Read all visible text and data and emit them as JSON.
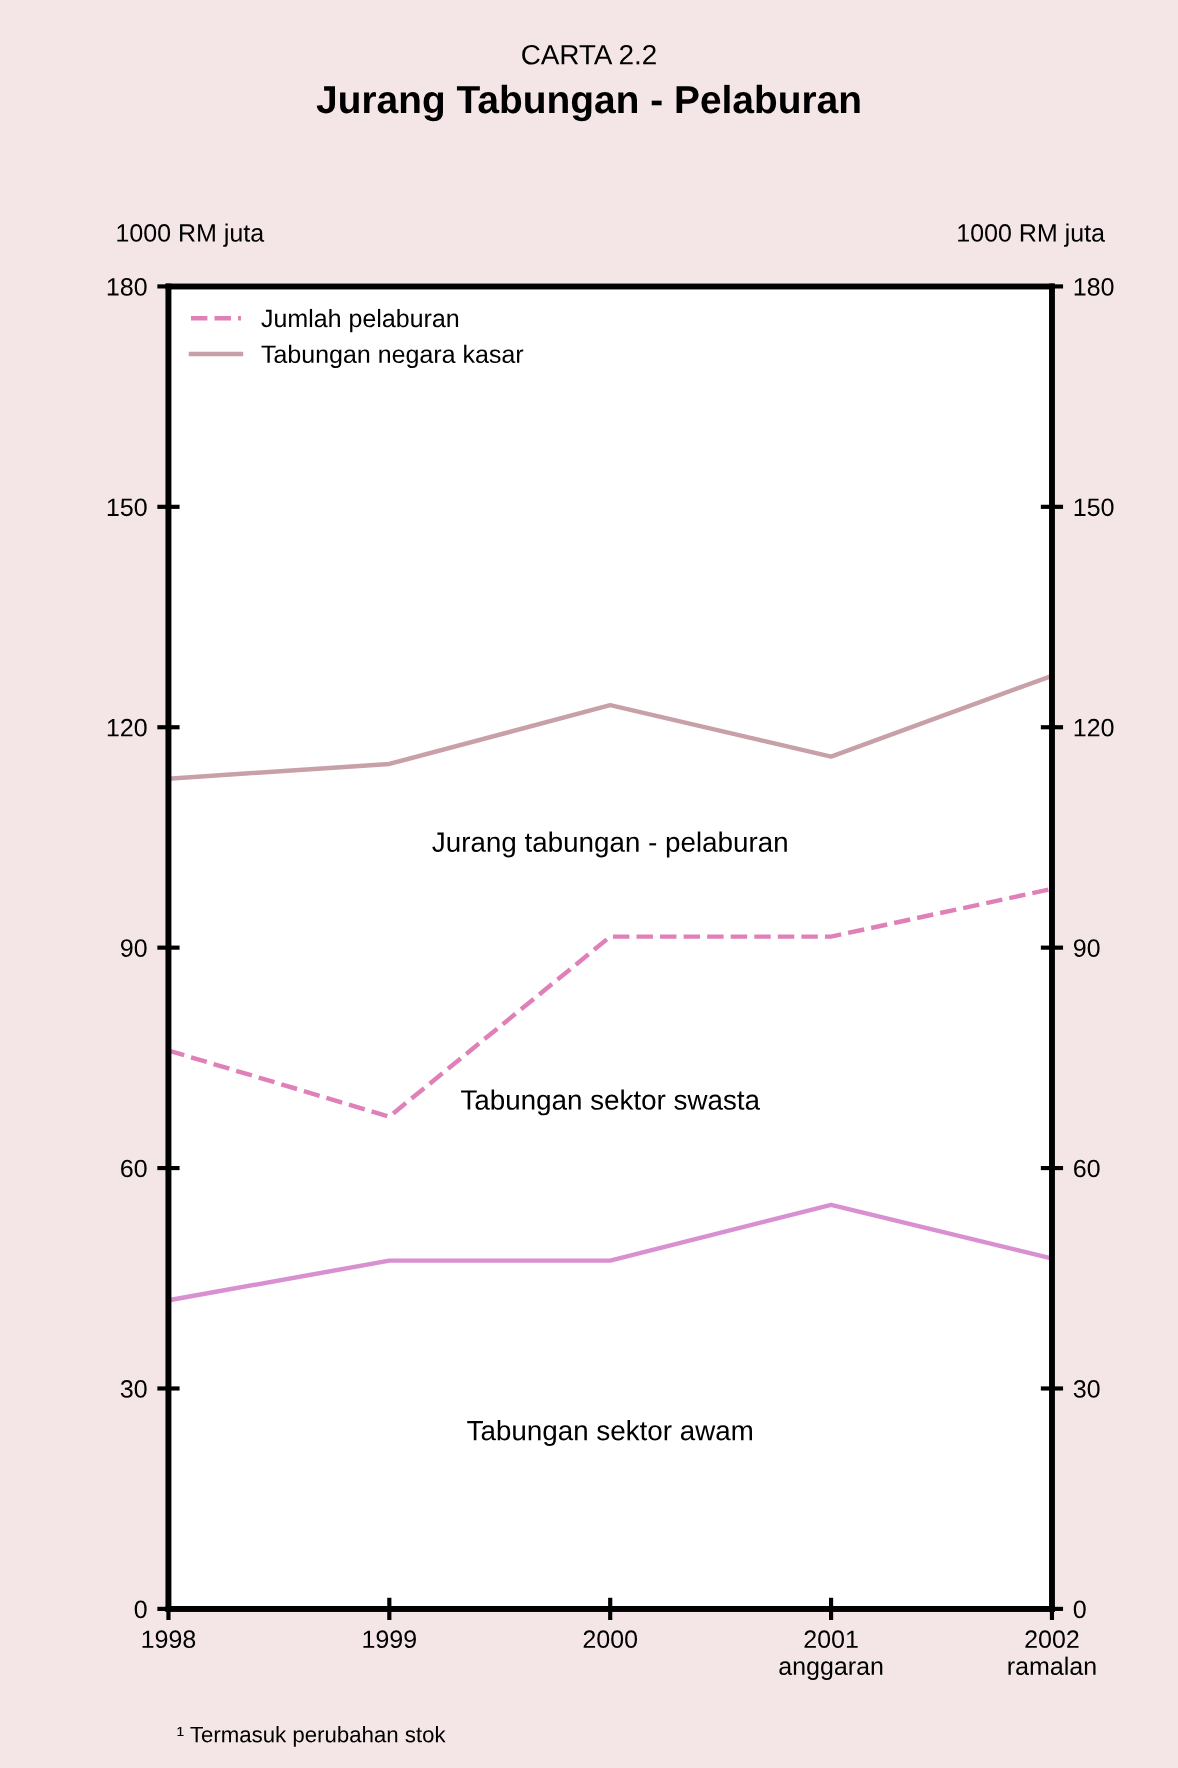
{
  "chart_data": {
    "type": "line",
    "subtitle": "CARTA 2.2",
    "title": "Jurang Tabungan - Pelaburan",
    "ylabel": "1000 RM juta",
    "y2label": "1000 RM juta",
    "categories": [
      "1998",
      "1999",
      "2000",
      "2001\nanggaran",
      "2002\nramalan"
    ],
    "series": [
      {
        "name": "Jumlah pelaburan",
        "color": "#e080b8",
        "line_style": "dashed",
        "values": [
          76,
          67,
          91.5,
          91.5,
          98
        ]
      },
      {
        "name": "Tabungan negara kasar",
        "color": "#c8a0a8",
        "line_style": "solid",
        "values": [
          113,
          115,
          123,
          116,
          127
        ]
      },
      {
        "color": "#d890d0",
        "line_style": "solid",
        "values": [
          42,
          47.4,
          47.4,
          55,
          47.7
        ]
      }
    ],
    "ylim": [
      0,
      180
    ],
    "yticks": [
      0,
      30,
      60,
      90,
      120,
      150,
      180
    ],
    "y2lim": [
      0,
      180
    ],
    "y2ticks": [
      0,
      30,
      60,
      90,
      120,
      150,
      180
    ],
    "legend": "top left",
    "grid": false,
    "marker": "none",
    "annotations": [
      "Jurang tabungan - pelaburan",
      "Tabungan sektor swasta",
      "Tabungan sektor awam",
      "¹ Termasuk perubahan stok"
    ]
  }
}
